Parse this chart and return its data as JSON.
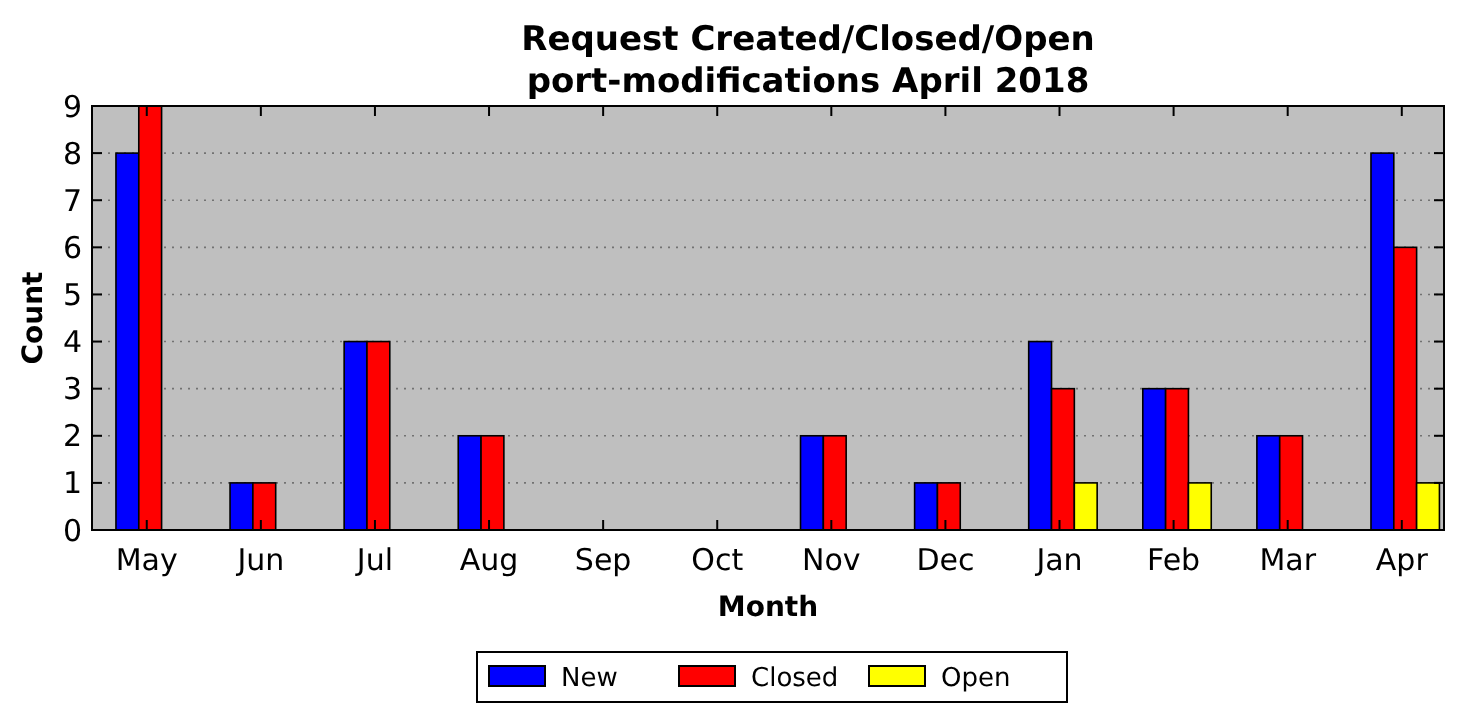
{
  "chart_data": {
    "type": "bar",
    "title": "Request Created/Closed/Open\nport-modifications April 2018",
    "xlabel": "Month",
    "ylabel": "Count",
    "categories": [
      "May",
      "Jun",
      "Jul",
      "Aug",
      "Sep",
      "Oct",
      "Nov",
      "Dec",
      "Jan",
      "Feb",
      "Mar",
      "Apr"
    ],
    "series": [
      {
        "name": "New",
        "color": "#0000ff",
        "values": [
          8,
          1,
          4,
          2,
          0,
          0,
          2,
          1,
          4,
          3,
          2,
          8
        ]
      },
      {
        "name": "Closed",
        "color": "#ff0000",
        "values": [
          9,
          1,
          4,
          2,
          0,
          0,
          2,
          1,
          3,
          3,
          2,
          6
        ]
      },
      {
        "name": "Open",
        "color": "#ffff00",
        "values": [
          0,
          0,
          0,
          0,
          0,
          0,
          0,
          0,
          1,
          1,
          0,
          1
        ]
      }
    ],
    "ylim": [
      0,
      9
    ],
    "yticks": [
      0,
      1,
      2,
      3,
      4,
      5,
      6,
      7,
      8,
      9
    ],
    "grid": "y",
    "legend": "bottom"
  }
}
